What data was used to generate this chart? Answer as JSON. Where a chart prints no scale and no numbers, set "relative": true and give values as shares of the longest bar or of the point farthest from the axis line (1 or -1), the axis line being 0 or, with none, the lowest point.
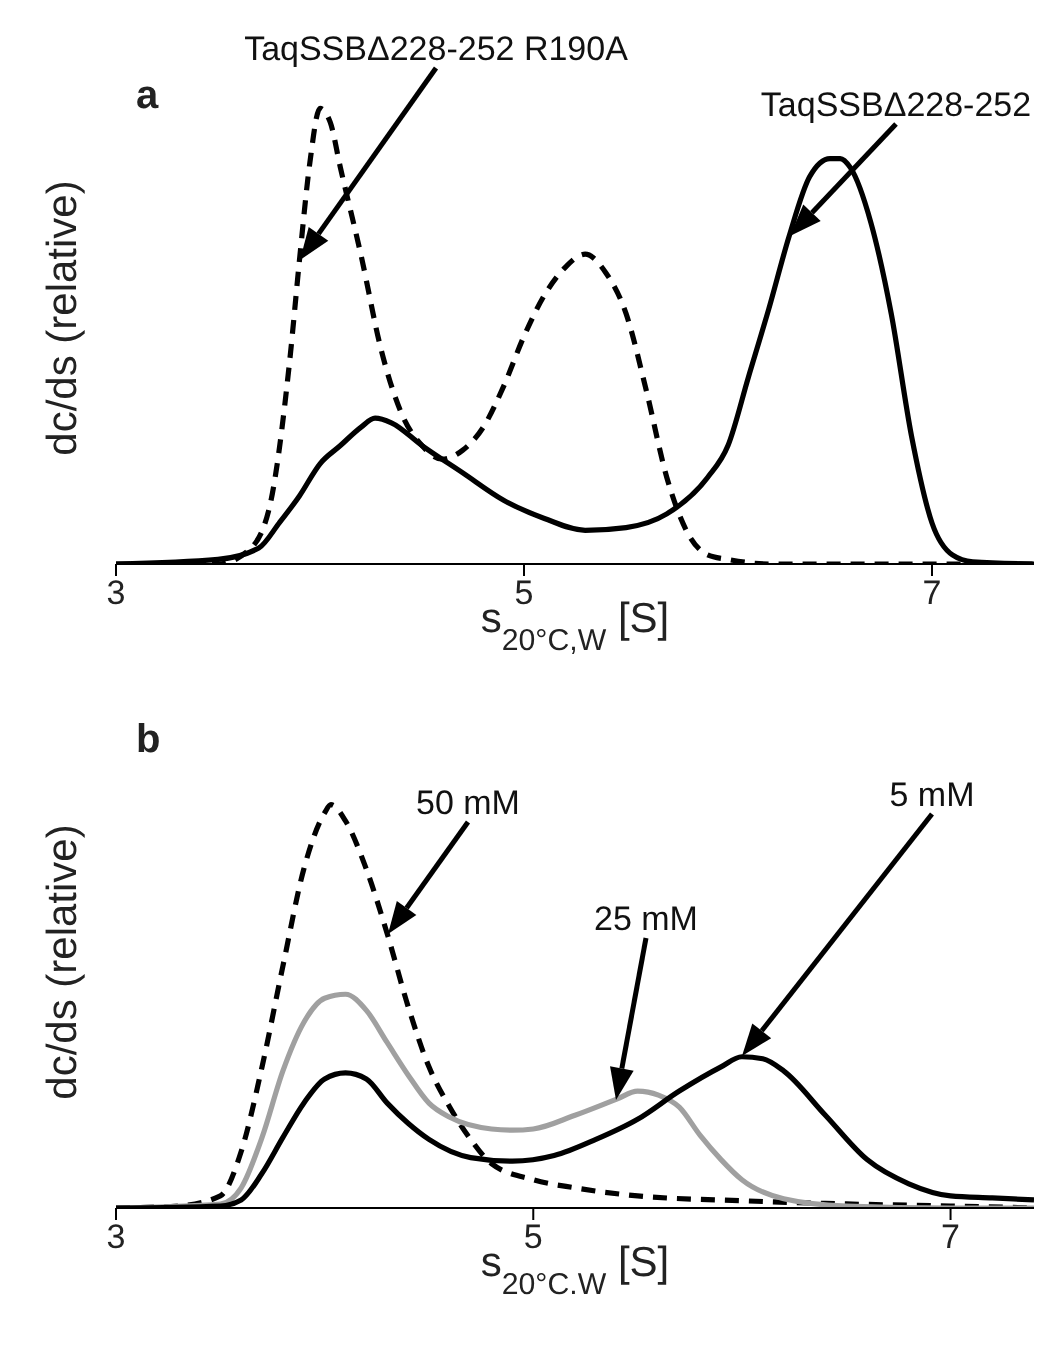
{
  "chart_data": [
    {
      "type": "line",
      "title": "a",
      "xlabel": "s$_{20°C,W}$ [S]",
      "ylabel": "dc/ds (relative)",
      "relative": true,
      "xlim": [
        3,
        7.5
      ],
      "xticks": [
        3,
        5,
        7
      ],
      "marker": "none",
      "grid": false,
      "legend": false,
      "series": [
        {
          "color": "#000000",
          "line_style": "dashed",
          "x": [
            3.0,
            3.5,
            3.65,
            3.75,
            3.85,
            3.9,
            3.95,
            4.0,
            4.05,
            4.1,
            4.2,
            4.3,
            4.4,
            4.5,
            4.6,
            4.7,
            4.8,
            4.9,
            5.0,
            5.1,
            5.2,
            5.3,
            5.4,
            5.5,
            5.6,
            5.7,
            5.8,
            5.9,
            6.0,
            6.2,
            7.5
          ],
          "values": [
            0,
            0,
            0.03,
            0.12,
            0.44,
            0.67,
            0.88,
            1.0,
            0.97,
            0.87,
            0.68,
            0.47,
            0.33,
            0.26,
            0.23,
            0.25,
            0.3,
            0.39,
            0.5,
            0.59,
            0.65,
            0.68,
            0.64,
            0.55,
            0.38,
            0.19,
            0.07,
            0.02,
            0.01,
            0,
            0
          ]
        },
        {
          "color": "#000000",
          "line_style": "solid",
          "x": [
            3.0,
            3.5,
            3.7,
            3.8,
            3.9,
            4.0,
            4.1,
            4.2,
            4.27,
            4.35,
            4.5,
            4.7,
            4.9,
            5.1,
            5.3,
            5.5,
            5.7,
            5.9,
            6.0,
            6.1,
            6.2,
            6.3,
            6.4,
            6.5,
            6.55,
            6.6,
            6.7,
            6.8,
            6.9,
            7.0,
            7.1,
            7.2,
            7.5
          ],
          "values": [
            0,
            0.01,
            0.035,
            0.09,
            0.15,
            0.22,
            0.26,
            0.3,
            0.32,
            0.31,
            0.26,
            0.2,
            0.14,
            0.1,
            0.074,
            0.08,
            0.11,
            0.19,
            0.26,
            0.41,
            0.56,
            0.72,
            0.85,
            0.89,
            0.89,
            0.87,
            0.75,
            0.55,
            0.28,
            0.09,
            0.02,
            0.005,
            0
          ]
        }
      ],
      "annotations": [
        "TaqSSBΔ228-252 R190A",
        "TaqSSBΔ228-252"
      ]
    },
    {
      "type": "line",
      "title": "b",
      "xlabel": "s$_{20°C.W}$ [S]",
      "ylabel": "dc/ds (relative)",
      "relative": true,
      "xlim": [
        3,
        7.4
      ],
      "xticks": [
        3,
        5,
        7
      ],
      "marker": "none",
      "grid": false,
      "legend": false,
      "series": [
        {
          "color": "#000000",
          "line_style": "dashed",
          "x": [
            3.0,
            3.3,
            3.5,
            3.6,
            3.7,
            3.8,
            3.9,
            4.0,
            4.03,
            4.1,
            4.2,
            4.3,
            4.4,
            4.5,
            4.6,
            4.7,
            4.8,
            5.0,
            5.2,
            5.5,
            6.0,
            6.5,
            7.0,
            7.4
          ],
          "values": [
            0,
            0.005,
            0.03,
            0.14,
            0.35,
            0.6,
            0.84,
            0.98,
            1.0,
            0.96,
            0.84,
            0.68,
            0.5,
            0.35,
            0.25,
            0.17,
            0.11,
            0.07,
            0.05,
            0.03,
            0.018,
            0.01,
            0.005,
            0
          ]
        },
        {
          "color": "#a0a0a0",
          "line_style": "solid",
          "x": [
            3.0,
            3.5,
            3.6,
            3.7,
            3.8,
            3.9,
            4.0,
            4.1,
            4.2,
            4.3,
            4.4,
            4.5,
            4.6,
            4.8,
            4.9,
            5.0,
            5.2,
            5.4,
            5.5,
            5.6,
            5.7,
            5.8,
            5.9,
            6.0,
            6.2,
            6.5,
            7.0,
            7.4
          ],
          "values": [
            0,
            0.01,
            0.05,
            0.175,
            0.34,
            0.46,
            0.52,
            0.53,
            0.49,
            0.41,
            0.33,
            0.26,
            0.225,
            0.196,
            0.193,
            0.196,
            0.23,
            0.27,
            0.29,
            0.28,
            0.25,
            0.18,
            0.12,
            0.07,
            0.023,
            0.005,
            0,
            0
          ]
        },
        {
          "color": "#000000",
          "line_style": "solid",
          "x": [
            3.0,
            3.5,
            3.6,
            3.7,
            3.8,
            3.9,
            4.0,
            4.1,
            4.2,
            4.3,
            4.4,
            4.5,
            4.7,
            4.9,
            5.1,
            5.3,
            5.5,
            5.7,
            5.9,
            6.0,
            6.1,
            6.2,
            6.4,
            6.6,
            6.8,
            7.0,
            7.2,
            7.4
          ],
          "values": [
            0,
            0.005,
            0.02,
            0.086,
            0.175,
            0.26,
            0.32,
            0.335,
            0.32,
            0.26,
            0.21,
            0.17,
            0.125,
            0.116,
            0.13,
            0.17,
            0.22,
            0.29,
            0.35,
            0.375,
            0.37,
            0.34,
            0.23,
            0.12,
            0.06,
            0.03,
            0.025,
            0.02
          ]
        }
      ],
      "annotations": [
        "50 mM",
        "25 mM",
        "5 mM"
      ]
    }
  ]
}
